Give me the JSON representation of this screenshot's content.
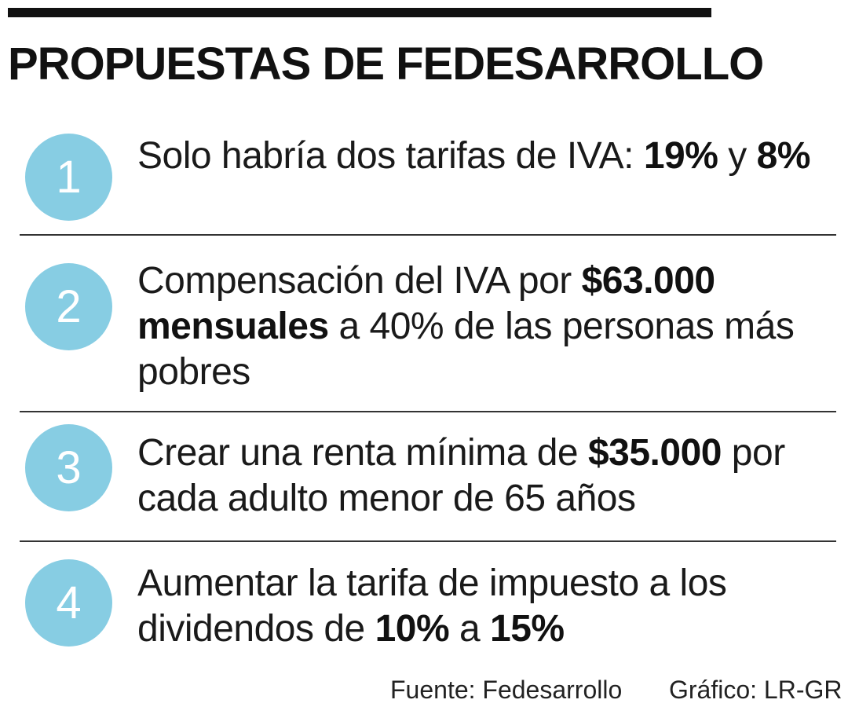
{
  "title": "PROPUESTAS DE FEDESARROLLO",
  "items": [
    {
      "number": "1",
      "parts": [
        {
          "text": "Solo habría dos tarifas de IVA: ",
          "bold": false
        },
        {
          "text": "19%",
          "bold": true
        },
        {
          "text": " y ",
          "bold": false
        },
        {
          "text": "8%",
          "bold": true
        }
      ]
    },
    {
      "number": "2",
      "parts": [
        {
          "text": "Compensación del IVA por ",
          "bold": false
        },
        {
          "text": "$63.000 mensuales",
          "bold": true
        },
        {
          "text": " a 40% de las personas más pobres",
          "bold": false
        }
      ]
    },
    {
      "number": "3",
      "parts": [
        {
          "text": "Crear una renta mínima de ",
          "bold": false
        },
        {
          "text": "$35.000",
          "bold": true
        },
        {
          "text": " por cada adulto menor de 65 años",
          "bold": false
        }
      ]
    },
    {
      "number": "4",
      "parts": [
        {
          "text": "Aumentar la tarifa de impuesto a los dividendos de ",
          "bold": false
        },
        {
          "text": "10%",
          "bold": true
        },
        {
          "text": " a ",
          "bold": false
        },
        {
          "text": "15%",
          "bold": true
        }
      ]
    }
  ],
  "footer": {
    "source": "Fuente: Fedesarrollo",
    "credit": "Gráfico: LR-GR"
  },
  "colors": {
    "circle": "#87cde3",
    "top_bar": "#111111",
    "divider": "#333333"
  }
}
